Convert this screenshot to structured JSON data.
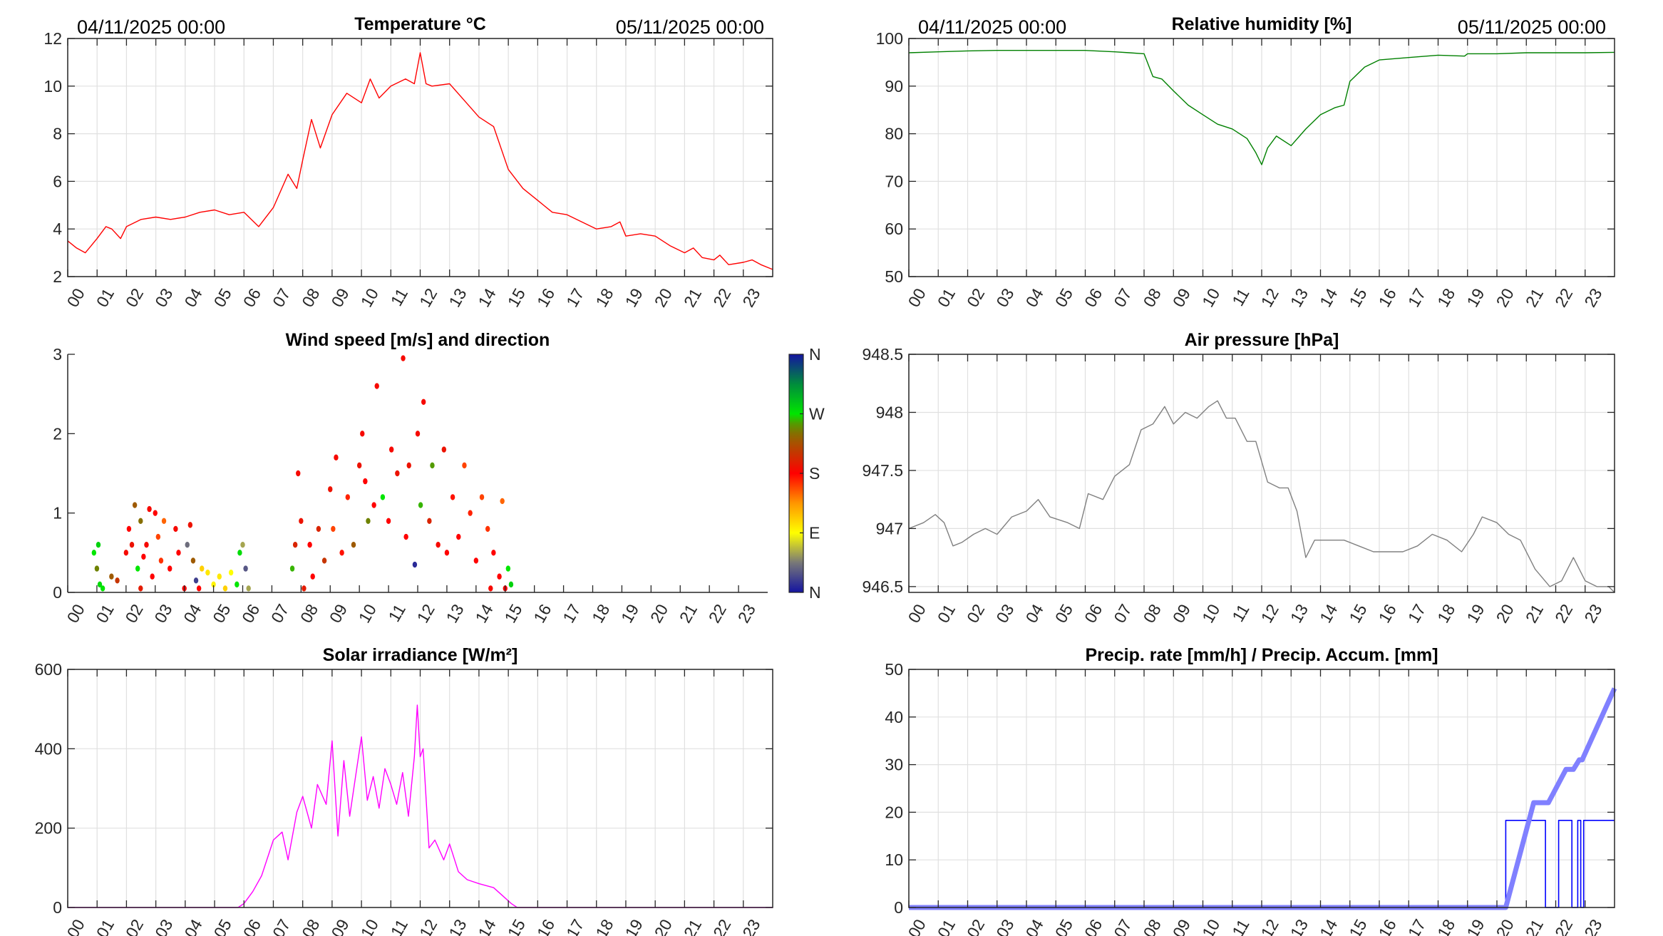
{
  "chart_data": [
    {
      "id": "temperature",
      "type": "line",
      "title": "Temperature °C",
      "header_left": "04/11/2025 00:00",
      "header_right": "05/11/2025 00:00",
      "xlabel": "",
      "ylabel": "",
      "xlim": [
        0,
        24
      ],
      "ylim": [
        2,
        12
      ],
      "yticks": [
        2,
        4,
        6,
        8,
        10,
        12
      ],
      "xticklabels": [
        "00",
        "01",
        "02",
        "03",
        "04",
        "05",
        "06",
        "07",
        "08",
        "09",
        "10",
        "11",
        "12",
        "13",
        "14",
        "15",
        "16",
        "17",
        "18",
        "19",
        "20",
        "21",
        "22",
        "23"
      ],
      "grid": true,
      "series": [
        {
          "name": "Temperature",
          "color": "#ff0000",
          "x": [
            0,
            0.3,
            0.6,
            1,
            1.3,
            1.5,
            1.8,
            2,
            2.5,
            3,
            3.5,
            4,
            4.5,
            5,
            5.5,
            6,
            6.5,
            7,
            7.5,
            7.8,
            8,
            8.3,
            8.6,
            9,
            9.5,
            10,
            10.3,
            10.6,
            11,
            11.5,
            11.8,
            12,
            12.2,
            12.4,
            13,
            13.5,
            14,
            14.5,
            15,
            15.5,
            16,
            16.5,
            17,
            17.5,
            18,
            18.5,
            18.8,
            19,
            19.5,
            20,
            20.5,
            21,
            21.3,
            21.6,
            22,
            22.2,
            22.5,
            23,
            23.3,
            23.6,
            24
          ],
          "y": [
            3.5,
            3.2,
            3.0,
            3.6,
            4.1,
            4.0,
            3.6,
            4.1,
            4.4,
            4.5,
            4.4,
            4.5,
            4.7,
            4.8,
            4.6,
            4.7,
            4.1,
            4.9,
            6.3,
            5.7,
            6.9,
            8.6,
            7.4,
            8.8,
            9.7,
            9.3,
            10.3,
            9.5,
            10.0,
            10.3,
            10.1,
            11.4,
            10.1,
            10.0,
            10.1,
            9.4,
            8.7,
            8.3,
            6.5,
            5.7,
            5.2,
            4.7,
            4.6,
            4.3,
            4.0,
            4.1,
            4.3,
            3.7,
            3.8,
            3.7,
            3.3,
            3.0,
            3.2,
            2.8,
            2.7,
            2.9,
            2.5,
            2.6,
            2.7,
            2.5,
            2.3
          ]
        }
      ]
    },
    {
      "id": "humidity",
      "type": "line",
      "title": "Relative humidity [%]",
      "header_left": "04/11/2025 00:00",
      "header_right": "05/11/2025 00:00",
      "xlabel": "",
      "ylabel": "",
      "xlim": [
        0,
        24
      ],
      "ylim": [
        50,
        100
      ],
      "yticks": [
        50,
        60,
        70,
        80,
        90,
        100
      ],
      "xticklabels": [
        "00",
        "01",
        "02",
        "03",
        "04",
        "05",
        "06",
        "07",
        "08",
        "09",
        "10",
        "11",
        "12",
        "13",
        "14",
        "15",
        "16",
        "17",
        "18",
        "19",
        "20",
        "21",
        "22",
        "23"
      ],
      "grid": true,
      "series": [
        {
          "name": "Relative humidity",
          "color": "#008000",
          "x": [
            0,
            1,
            2,
            3,
            4,
            5,
            6,
            7,
            7.5,
            8,
            8.3,
            8.6,
            9,
            9.5,
            10,
            10.5,
            11,
            11.5,
            11.8,
            12,
            12.2,
            12.5,
            13,
            13.5,
            14,
            14.5,
            14.8,
            15,
            15.5,
            16,
            17,
            18,
            18.9,
            19,
            20,
            21,
            22,
            23,
            24
          ],
          "y": [
            97,
            97.2,
            97.4,
            97.5,
            97.5,
            97.5,
            97.5,
            97.2,
            97,
            96.8,
            92,
            91.5,
            89,
            86,
            84,
            82,
            81,
            79,
            76,
            73.5,
            77,
            79.5,
            77.5,
            81,
            84,
            85.5,
            86,
            91,
            94,
            95.5,
            96,
            96.5,
            96.3,
            96.8,
            96.8,
            97,
            97,
            97,
            97.1
          ]
        }
      ]
    },
    {
      "id": "wind",
      "type": "scatter",
      "title": "Wind speed [m/s] and direction",
      "xlabel": "",
      "ylabel": "",
      "xlim": [
        0,
        24
      ],
      "ylim": [
        0,
        3
      ],
      "yticks": [
        0,
        1,
        2,
        3
      ],
      "xticklabels": [
        "00",
        "01",
        "02",
        "03",
        "04",
        "05",
        "06",
        "07",
        "08",
        "09",
        "10",
        "11",
        "12",
        "13",
        "14",
        "15",
        "16",
        "17",
        "18",
        "19",
        "20",
        "21",
        "22",
        "23"
      ],
      "grid": false,
      "colorbar": {
        "labels": [
          "N",
          "E",
          "S",
          "W",
          "N"
        ],
        "range_deg": [
          0,
          360
        ]
      },
      "points": [
        [
          0.9,
          0.5,
          270
        ],
        [
          1.0,
          0.3,
          250
        ],
        [
          1.05,
          0.6,
          280
        ],
        [
          1.1,
          0.1,
          275
        ],
        [
          1.2,
          0.05,
          270
        ],
        [
          1.5,
          0.2,
          230
        ],
        [
          1.7,
          0.15,
          210
        ],
        [
          2.0,
          0.5,
          185
        ],
        [
          2.1,
          0.8,
          180
        ],
        [
          2.2,
          0.6,
          190
        ],
        [
          2.3,
          1.1,
          230
        ],
        [
          2.4,
          0.3,
          270
        ],
        [
          2.5,
          0.05,
          195
        ],
        [
          2.5,
          0.9,
          240
        ],
        [
          2.6,
          0.45,
          180
        ],
        [
          2.7,
          0.6,
          185
        ],
        [
          2.8,
          1.05,
          185
        ],
        [
          2.9,
          0.2,
          180
        ],
        [
          3.0,
          1.0,
          180
        ],
        [
          3.1,
          0.7,
          160
        ],
        [
          3.2,
          0.4,
          165
        ],
        [
          3.3,
          0.9,
          150
        ],
        [
          3.5,
          0.3,
          180
        ],
        [
          3.7,
          0.8,
          185
        ],
        [
          3.8,
          0.5,
          180
        ],
        [
          4.0,
          0.05,
          180
        ],
        [
          4.1,
          0.6,
          40
        ],
        [
          4.2,
          0.85,
          190
        ],
        [
          4.3,
          0.4,
          230
        ],
        [
          4.4,
          0.15,
          20
        ],
        [
          4.5,
          0.05,
          180
        ],
        [
          4.6,
          0.3,
          110
        ],
        [
          4.8,
          0.25,
          100
        ],
        [
          5.0,
          0.1,
          95
        ],
        [
          5.2,
          0.2,
          100
        ],
        [
          5.4,
          0.05,
          110
        ],
        [
          5.6,
          0.25,
          90
        ],
        [
          5.8,
          0.1,
          270
        ],
        [
          5.9,
          0.5,
          275
        ],
        [
          6.0,
          0.6,
          60
        ],
        [
          6.1,
          0.3,
          30
        ],
        [
          6.2,
          0.05,
          60
        ],
        [
          7.7,
          0.3,
          260
        ],
        [
          7.8,
          0.6,
          200
        ],
        [
          7.9,
          1.5,
          185
        ],
        [
          8.0,
          0.9,
          190
        ],
        [
          8.1,
          0.05,
          195
        ],
        [
          8.3,
          0.6,
          180
        ],
        [
          8.4,
          0.2,
          180
        ],
        [
          8.6,
          0.8,
          200
        ],
        [
          8.8,
          0.4,
          210
        ],
        [
          9.0,
          1.3,
          190
        ],
        [
          9.1,
          0.8,
          160
        ],
        [
          9.2,
          1.7,
          185
        ],
        [
          9.4,
          0.5,
          175
        ],
        [
          9.6,
          1.2,
          170
        ],
        [
          9.8,
          0.6,
          230
        ],
        [
          10.0,
          1.6,
          190
        ],
        [
          10.1,
          2.0,
          185
        ],
        [
          10.2,
          1.4,
          180
        ],
        [
          10.3,
          0.9,
          250
        ],
        [
          10.5,
          1.1,
          180
        ],
        [
          10.6,
          2.6,
          185
        ],
        [
          10.8,
          1.2,
          270
        ],
        [
          11.0,
          0.9,
          180
        ],
        [
          11.1,
          1.8,
          185
        ],
        [
          11.3,
          1.5,
          190
        ],
        [
          11.5,
          2.95,
          185
        ],
        [
          11.6,
          0.7,
          180
        ],
        [
          11.7,
          1.6,
          190
        ],
        [
          11.9,
          0.35,
          10
        ],
        [
          12.0,
          2.0,
          185
        ],
        [
          12.1,
          1.1,
          260
        ],
        [
          12.2,
          2.4,
          185
        ],
        [
          12.4,
          0.9,
          200
        ],
        [
          12.5,
          1.6,
          255
        ],
        [
          12.7,
          0.6,
          185
        ],
        [
          12.9,
          1.8,
          190
        ],
        [
          13.0,
          0.5,
          180
        ],
        [
          13.2,
          1.2,
          175
        ],
        [
          13.4,
          0.7,
          180
        ],
        [
          13.6,
          1.6,
          160
        ],
        [
          13.8,
          1.0,
          170
        ],
        [
          14.0,
          0.4,
          180
        ],
        [
          14.2,
          1.2,
          160
        ],
        [
          14.4,
          0.8,
          165
        ],
        [
          14.5,
          0.05,
          185
        ],
        [
          14.6,
          0.5,
          180
        ],
        [
          14.8,
          0.2,
          180
        ],
        [
          14.9,
          1.15,
          150
        ],
        [
          15.0,
          0.05,
          180
        ],
        [
          15.1,
          0.3,
          270
        ],
        [
          15.2,
          0.1,
          280
        ]
      ]
    },
    {
      "id": "pressure",
      "type": "line",
      "title": "Air pressure [hPa]",
      "xlabel": "",
      "ylabel": "",
      "xlim": [
        0,
        24
      ],
      "ylim": [
        946.45,
        948.5
      ],
      "yticks": [
        946.5,
        947,
        947.5,
        948,
        948.5
      ],
      "xticklabels": [
        "00",
        "01",
        "02",
        "03",
        "04",
        "05",
        "06",
        "07",
        "08",
        "09",
        "10",
        "11",
        "12",
        "13",
        "14",
        "15",
        "16",
        "17",
        "18",
        "19",
        "20",
        "21",
        "22",
        "23"
      ],
      "grid": true,
      "series": [
        {
          "name": "Air pressure",
          "color": "#808080",
          "x": [
            0,
            0.5,
            0.9,
            1.2,
            1.5,
            1.8,
            2.2,
            2.6,
            3,
            3.5,
            4,
            4.4,
            4.8,
            5.4,
            5.8,
            6.1,
            6.6,
            7,
            7.5,
            7.9,
            8.3,
            8.7,
            9,
            9.4,
            9.8,
            10.2,
            10.5,
            10.8,
            11.1,
            11.5,
            11.8,
            12.2,
            12.6,
            12.9,
            13.2,
            13.5,
            13.8,
            14.3,
            14.8,
            15.3,
            15.8,
            16.3,
            16.8,
            17.3,
            17.8,
            18.3,
            18.8,
            19.2,
            19.5,
            20,
            20.4,
            20.8,
            21.3,
            21.8,
            22.2,
            22.6,
            23,
            23.4,
            23.8,
            24
          ],
          "y": [
            947.0,
            947.05,
            947.12,
            947.05,
            946.85,
            946.88,
            946.95,
            947.0,
            946.95,
            947.1,
            947.15,
            947.25,
            947.1,
            947.05,
            947.0,
            947.3,
            947.25,
            947.45,
            947.55,
            947.85,
            947.9,
            948.05,
            947.9,
            948.0,
            947.95,
            948.05,
            948.1,
            947.95,
            947.95,
            947.75,
            947.75,
            947.4,
            947.35,
            947.35,
            947.15,
            946.75,
            946.9,
            946.9,
            946.9,
            946.85,
            946.8,
            946.8,
            946.8,
            946.85,
            946.95,
            946.9,
            946.8,
            946.95,
            947.1,
            947.05,
            946.95,
            946.9,
            946.65,
            946.5,
            946.55,
            946.75,
            946.55,
            946.5,
            946.5,
            946.45
          ]
        }
      ]
    },
    {
      "id": "solar",
      "type": "line",
      "title": "Solar irradiance [W/m²]",
      "xlabel": "",
      "ylabel": "",
      "xlim": [
        0,
        24
      ],
      "ylim": [
        0,
        600
      ],
      "yticks": [
        0,
        200,
        400,
        600
      ],
      "xticklabels": [
        "00",
        "01",
        "02",
        "03",
        "04",
        "05",
        "06",
        "07",
        "08",
        "09",
        "10",
        "11",
        "12",
        "13",
        "14",
        "15",
        "16",
        "17",
        "18",
        "19",
        "20",
        "21",
        "22",
        "23"
      ],
      "grid": true,
      "series": [
        {
          "name": "Solar irradiance",
          "color": "#ff00ff",
          "x": [
            0,
            5.8,
            6,
            6.3,
            6.6,
            7,
            7.3,
            7.5,
            7.8,
            8,
            8.3,
            8.5,
            8.8,
            9,
            9.2,
            9.4,
            9.6,
            9.8,
            10,
            10.2,
            10.4,
            10.6,
            10.8,
            11,
            11.2,
            11.4,
            11.6,
            11.8,
            11.9,
            12,
            12.1,
            12.3,
            12.5,
            12.8,
            13,
            13.3,
            13.6,
            14,
            14.5,
            14.8,
            15.1,
            15.3,
            24
          ],
          "y": [
            0,
            0,
            10,
            40,
            80,
            170,
            190,
            120,
            240,
            280,
            200,
            310,
            260,
            420,
            180,
            370,
            230,
            330,
            430,
            270,
            330,
            250,
            350,
            310,
            260,
            340,
            230,
            380,
            510,
            380,
            400,
            150,
            170,
            120,
            160,
            90,
            70,
            60,
            50,
            30,
            10,
            0,
            0
          ]
        }
      ]
    },
    {
      "id": "precip",
      "type": "line",
      "title": "Precip. rate [mm/h] / Precip. Accum. [mm]",
      "xlabel": "",
      "ylabel": "",
      "xlim": [
        0,
        24
      ],
      "ylim": [
        0,
        50
      ],
      "yticks": [
        0,
        10,
        20,
        30,
        40,
        50
      ],
      "xticklabels": [
        "00",
        "01",
        "02",
        "03",
        "04",
        "05",
        "06",
        "07",
        "08",
        "09",
        "10",
        "11",
        "12",
        "13",
        "14",
        "15",
        "16",
        "17",
        "18",
        "19",
        "20",
        "21",
        "22",
        "23"
      ],
      "grid": true,
      "series": [
        {
          "name": "Precip. rate",
          "color": "#0000ff",
          "x": [
            0,
            20.3,
            20.3,
            21.65,
            21.65,
            22.1,
            22.1,
            22.55,
            22.55,
            22.75,
            22.75,
            22.85,
            22.85,
            22.95,
            22.95,
            24
          ],
          "y": [
            0,
            0,
            18.3,
            18.3,
            0,
            0,
            18.3,
            18.3,
            0,
            0,
            18.3,
            18.3,
            0,
            0,
            18.3,
            18.3
          ]
        },
        {
          "name": "Precip. Accum.",
          "color": "#8080ff",
          "x": [
            0,
            20.3,
            21.25,
            21.75,
            22.35,
            22.6,
            22.8,
            22.9,
            24
          ],
          "y": [
            0,
            0,
            22,
            22,
            29,
            29,
            31,
            31,
            46
          ]
        }
      ]
    }
  ]
}
